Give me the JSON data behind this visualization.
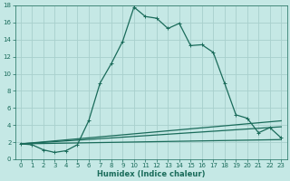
{
  "xlabel": "Humidex (Indice chaleur)",
  "bg_color": "#c5e8e5",
  "grid_color": "#a8d0cc",
  "line_color": "#1a6b5a",
  "xlim": [
    -0.5,
    23.5
  ],
  "ylim": [
    0,
    18
  ],
  "xticks": [
    0,
    1,
    2,
    3,
    4,
    5,
    6,
    7,
    8,
    9,
    10,
    11,
    12,
    13,
    14,
    15,
    16,
    17,
    18,
    19,
    20,
    21,
    22,
    23
  ],
  "yticks": [
    0,
    2,
    4,
    6,
    8,
    10,
    12,
    14,
    16,
    18
  ],
  "line1_x": [
    0,
    1,
    2,
    3,
    4,
    5,
    6,
    7,
    8,
    9,
    10,
    11,
    12,
    13,
    14,
    15,
    16,
    17,
    18,
    19,
    20,
    21,
    22,
    23
  ],
  "line1_y": [
    1.8,
    1.7,
    1.1,
    0.8,
    1.0,
    1.7,
    4.5,
    8.9,
    11.2,
    13.8,
    17.8,
    16.7,
    16.5,
    15.3,
    15.9,
    13.3,
    13.4,
    12.5,
    8.9,
    5.2,
    4.8,
    3.1,
    3.7,
    2.5
  ],
  "line2_x": [
    0,
    23
  ],
  "line2_y": [
    1.8,
    4.5
  ],
  "line3_x": [
    0,
    23
  ],
  "line3_y": [
    1.8,
    3.8
  ],
  "line4_x": [
    0,
    23
  ],
  "line4_y": [
    1.8,
    2.3
  ],
  "xlabel_fontsize": 6,
  "tick_fontsize": 5
}
